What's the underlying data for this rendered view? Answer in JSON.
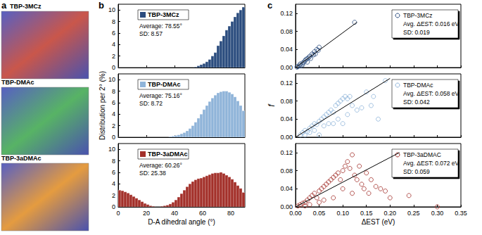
{
  "figure": {
    "panel_labels": [
      "a",
      "b",
      "c"
    ],
    "snapshots": [
      "TBP-3MCz",
      "TBP-DMAc",
      "TBP-3aDMAc"
    ]
  },
  "chart_data": [
    {
      "type": "histogram",
      "name": "TBP-3MCz",
      "color": "#2b4c7e",
      "legend": "upper left",
      "annotations": [
        "Average: 78.55°",
        "SD: 8.57"
      ],
      "bins": [
        0,
        2,
        4,
        6,
        8,
        10,
        12,
        14,
        16,
        18,
        20,
        22,
        24,
        26,
        28,
        30,
        32,
        34,
        36,
        38,
        40,
        42,
        44,
        46,
        48,
        50,
        52,
        54,
        56,
        58,
        60,
        62,
        64,
        66,
        68,
        70,
        72,
        74,
        76,
        78,
        80,
        82,
        84,
        86,
        88,
        90
      ],
      "values": [
        0,
        0,
        0,
        0,
        0,
        0,
        0,
        0,
        0,
        0,
        0,
        0,
        0,
        0,
        0,
        0,
        0,
        0,
        0,
        0,
        0,
        0,
        0,
        0,
        0,
        0,
        0,
        0.1,
        0.3,
        0.5,
        0.7,
        1.0,
        1.4,
        2.0,
        2.6,
        3.8,
        4.6,
        5.5,
        6.5,
        7.2,
        8.0,
        8.8,
        9.5,
        10.0,
        10.5
      ],
      "xlim": [
        0,
        90
      ],
      "xticks": [
        0,
        20,
        40,
        60,
        80
      ],
      "ylim": [
        0,
        11
      ],
      "yticks": [
        0,
        2,
        4,
        6,
        8,
        10
      ],
      "tick_labels": "y"
    },
    {
      "type": "histogram",
      "name": "TBP-DMAc",
      "color": "#8fb4d9",
      "legend": "upper left",
      "annotations": [
        "Average: 75.16°",
        "SD: 8.72"
      ],
      "ylabel": "Distribution per 2° (%)",
      "bins": [
        0,
        2,
        4,
        6,
        8,
        10,
        12,
        14,
        16,
        18,
        20,
        22,
        24,
        26,
        28,
        30,
        32,
        34,
        36,
        38,
        40,
        42,
        44,
        46,
        48,
        50,
        52,
        54,
        56,
        58,
        60,
        62,
        64,
        66,
        68,
        70,
        72,
        74,
        76,
        78,
        80,
        82,
        84,
        86,
        88,
        90
      ],
      "values": [
        0,
        0,
        0,
        0,
        0,
        0,
        0,
        0,
        0,
        0,
        0,
        0,
        0,
        0,
        0,
        0,
        0,
        0,
        0.1,
        0.2,
        0.3,
        0.4,
        0.6,
        0.8,
        1.1,
        1.5,
        2.0,
        2.6,
        3.3,
        4.0,
        4.8,
        5.5,
        6.2,
        6.8,
        7.3,
        7.7,
        7.9,
        8.0,
        8.0,
        7.8,
        7.5,
        7.0,
        6.3,
        5.5,
        4.6
      ],
      "xlim": [
        0,
        90
      ],
      "xticks": [
        0,
        20,
        40,
        60,
        80
      ],
      "ylim": [
        0,
        11
      ],
      "yticks": [
        0,
        2,
        4,
        6,
        8,
        10
      ],
      "tick_labels": "y"
    },
    {
      "type": "histogram",
      "name": "TBP-3aDMAc",
      "color": "#a3302a",
      "legend": "upper left",
      "annotations": [
        "Average: 60.26°",
        "SD: 25.38"
      ],
      "xlabel": "D-A dihedral angle (°)",
      "bins": [
        0,
        2,
        4,
        6,
        8,
        10,
        12,
        14,
        16,
        18,
        20,
        22,
        24,
        26,
        28,
        30,
        32,
        34,
        36,
        38,
        40,
        42,
        44,
        46,
        48,
        50,
        52,
        54,
        56,
        58,
        60,
        62,
        64,
        66,
        68,
        70,
        72,
        74,
        76,
        78,
        80,
        82,
        84,
        86,
        88,
        90
      ],
      "values": [
        2.9,
        2.8,
        2.6,
        2.4,
        2.1,
        1.8,
        1.5,
        1.2,
        0.9,
        0.6,
        0.4,
        0.2,
        0.1,
        0,
        0,
        0.1,
        0.2,
        0.3,
        0.5,
        0.8,
        1.2,
        1.7,
        2.3,
        2.9,
        3.5,
        4.0,
        4.4,
        4.7,
        4.9,
        5.0,
        5.2,
        5.4,
        5.6,
        5.8,
        5.9,
        5.9,
        6.0,
        5.8,
        5.5,
        5.2,
        4.8,
        4.3,
        3.7,
        3.2,
        2.5
      ],
      "xlim": [
        0,
        90
      ],
      "xticks": [
        0,
        20,
        40,
        60,
        80
      ],
      "ylim": [
        0,
        11
      ],
      "yticks": [
        0,
        2,
        4,
        6,
        8,
        10
      ]
    },
    {
      "type": "scatter",
      "name": "TBP-3MCz",
      "color": "#2b4c7e",
      "marker": "open circle",
      "legend": "upper right",
      "annotations": [
        "Avg. ΔEST: 0.016 eV",
        "SD: 0.019"
      ],
      "x": [
        0.005,
        0.008,
        0.01,
        0.012,
        0.015,
        0.018,
        0.02,
        0.022,
        0.025,
        0.028,
        0.03,
        0.032,
        0.035,
        0.038,
        0.04,
        0.042,
        0.045,
        0.048,
        0.05,
        0.003,
        0.015,
        0.025,
        0.125
      ],
      "values": [
        0.002,
        0.005,
        0.008,
        0.004,
        0.01,
        0.012,
        0.015,
        0.018,
        0.02,
        0.022,
        0.025,
        0.02,
        0.03,
        0.028,
        0.035,
        0.03,
        0.04,
        0.038,
        0.045,
        0.001,
        0.006,
        0.012,
        0.1
      ],
      "fit_line": {
        "x": [
          0,
          0.13
        ],
        "values": [
          0,
          0.1
        ]
      },
      "xlim": [
        0,
        0.35
      ],
      "xticks": [
        {
          "value": 0,
          "label": "0.00"
        },
        {
          "value": 0.05,
          "label": "0.05"
        },
        {
          "value": 0.1,
          "label": "0.10"
        },
        {
          "value": 0.15,
          "label": "0.15"
        },
        {
          "value": 0.2,
          "label": "0.20"
        },
        {
          "value": 0.25,
          "label": "0.25"
        },
        {
          "value": 0.3,
          "label": "0.30"
        },
        {
          "value": 0.35,
          "label": "0.35"
        }
      ],
      "ylim": [
        0,
        0.14
      ],
      "yticks": [
        {
          "value": 0,
          "label": "0.00"
        },
        {
          "value": 0.04,
          "label": "0.04"
        },
        {
          "value": 0.08,
          "label": "0.08"
        },
        {
          "value": 0.12,
          "label": "0.12"
        }
      ],
      "tick_labels": "y"
    },
    {
      "type": "scatter",
      "name": "TBP-DMAc",
      "color": "#8fb4d9",
      "marker": "open circle",
      "legend": "upper right",
      "annotations": [
        "Avg. ΔEST: 0.058 eV",
        "SD: 0.042"
      ],
      "ylabel": "f",
      "x": [
        0.01,
        0.015,
        0.02,
        0.025,
        0.03,
        0.035,
        0.04,
        0.045,
        0.05,
        0.055,
        0.06,
        0.065,
        0.07,
        0.075,
        0.08,
        0.085,
        0.09,
        0.095,
        0.1,
        0.105,
        0.11,
        0.115,
        0.12,
        0.13,
        0.14,
        0.15,
        0.16,
        0.165,
        0.19,
        0.175,
        0.02,
        0.04,
        0.06,
        0.07,
        0.05,
        0.09,
        0.1,
        0.11,
        0.03,
        0.08
      ],
      "values": [
        0.005,
        0.01,
        0.015,
        0.012,
        0.02,
        0.025,
        0.03,
        0.028,
        0.035,
        0.04,
        0.045,
        0.05,
        0.055,
        0.06,
        0.055,
        0.07,
        0.075,
        0.08,
        0.085,
        0.09,
        0.085,
        0.09,
        0.07,
        0.06,
        0.065,
        0.1,
        0.07,
        0.09,
        0.125,
        0.04,
        0.005,
        0.015,
        0.025,
        0.03,
        0.005,
        0.04,
        0.03,
        0.05,
        0.01,
        0.03
      ],
      "fit_line": {
        "x": [
          0,
          0.2
        ],
        "values": [
          0,
          0.13
        ]
      },
      "xlim": [
        0,
        0.35
      ],
      "xticks": [
        {
          "value": 0,
          "label": "0.00"
        },
        {
          "value": 0.05,
          "label": "0.05"
        },
        {
          "value": 0.1,
          "label": "0.10"
        },
        {
          "value": 0.15,
          "label": "0.15"
        },
        {
          "value": 0.2,
          "label": "0.20"
        },
        {
          "value": 0.25,
          "label": "0.25"
        },
        {
          "value": 0.3,
          "label": "0.30"
        },
        {
          "value": 0.35,
          "label": "0.35"
        }
      ],
      "ylim": [
        0,
        0.14
      ],
      "yticks": [
        {
          "value": 0,
          "label": "0.00"
        },
        {
          "value": 0.04,
          "label": "0.04"
        },
        {
          "value": 0.08,
          "label": "0.08"
        },
        {
          "value": 0.12,
          "label": "0.12"
        }
      ],
      "tick_labels": "y"
    },
    {
      "type": "scatter",
      "name": "TBP-3aDMAC",
      "color": "#a3302a",
      "marker": "open circle",
      "legend": "upper right",
      "annotations": [
        "Avg. ΔEST: 0.072 eV",
        "SD: 0.059"
      ],
      "xlabel": "ΔEST (eV)",
      "x": [
        0.005,
        0.01,
        0.015,
        0.02,
        0.025,
        0.03,
        0.035,
        0.04,
        0.045,
        0.05,
        0.055,
        0.06,
        0.065,
        0.07,
        0.075,
        0.08,
        0.085,
        0.09,
        0.095,
        0.1,
        0.105,
        0.11,
        0.115,
        0.12,
        0.125,
        0.13,
        0.135,
        0.14,
        0.145,
        0.15,
        0.155,
        0.16,
        0.17,
        0.18,
        0.19,
        0.2,
        0.24,
        0.3,
        0.02,
        0.05,
        0.08,
        0.1,
        0.12,
        0.06,
        0.03
      ],
      "values": [
        0.002,
        0.005,
        0.008,
        0.01,
        0.015,
        0.02,
        0.025,
        0.03,
        0.02,
        0.035,
        0.04,
        0.045,
        0.05,
        0.055,
        0.06,
        0.065,
        0.07,
        0.075,
        0.06,
        0.08,
        0.09,
        0.1,
        0.085,
        0.115,
        0.07,
        0.06,
        0.09,
        0.05,
        0.04,
        0.075,
        0.03,
        0.06,
        0.045,
        0.04,
        0.035,
        0.02,
        0.025,
        0,
        0.002,
        0.01,
        0.02,
        0.04,
        0.03,
        0.015,
        0.005
      ],
      "fit_line": {
        "x": [
          0,
          0.22
        ],
        "values": [
          0,
          0.12
        ]
      },
      "xlim": [
        0,
        0.35
      ],
      "xticks": [
        {
          "value": 0,
          "label": "0.00"
        },
        {
          "value": 0.05,
          "label": "0.05"
        },
        {
          "value": 0.1,
          "label": "0.10"
        },
        {
          "value": 0.15,
          "label": "0.15"
        },
        {
          "value": 0.2,
          "label": "0.20"
        },
        {
          "value": 0.25,
          "label": "0.25"
        },
        {
          "value": 0.3,
          "label": "0.30"
        },
        {
          "value": 0.35,
          "label": "0.35"
        }
      ],
      "ylim": [
        0,
        0.14
      ],
      "yticks": [
        {
          "value": 0,
          "label": "0.00"
        },
        {
          "value": 0.04,
          "label": "0.04"
        },
        {
          "value": 0.08,
          "label": "0.08"
        },
        {
          "value": 0.12,
          "label": "0.12"
        }
      ]
    }
  ]
}
